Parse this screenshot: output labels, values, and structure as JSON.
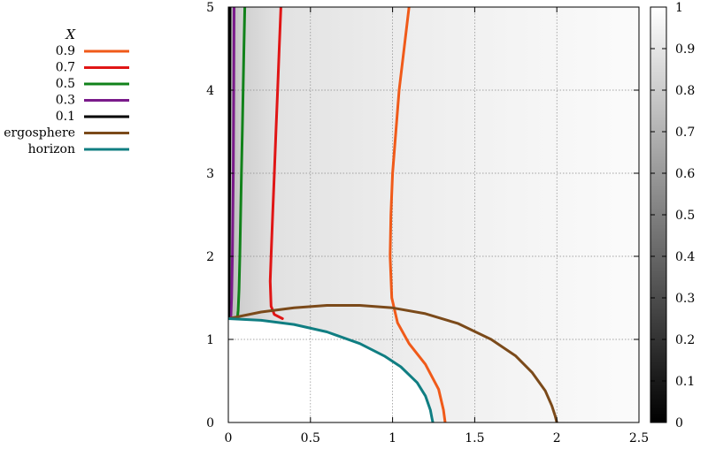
{
  "chart_data": {
    "type": "line",
    "title": "",
    "xlabel": "",
    "ylabel": "",
    "xlim": [
      0,
      2.5
    ],
    "ylim": [
      0,
      5
    ],
    "x_ticks": [
      0,
      0.5,
      1,
      1.5,
      2,
      2.5
    ],
    "y_ticks": [
      0,
      1,
      2,
      3,
      4,
      5
    ],
    "x_tick_labels": [
      "0",
      "0.5",
      "1",
      "1.5",
      "2",
      "2.5"
    ],
    "y_tick_labels": [
      "0",
      "1",
      "2",
      "3",
      "4",
      "5"
    ],
    "grid": true,
    "background": "grayscale heatmap",
    "colorbar": {
      "range": [
        0,
        1
      ],
      "ticks": [
        0,
        0.1,
        0.2,
        0.3,
        0.4,
        0.5,
        0.6,
        0.7,
        0.8,
        0.9,
        1
      ],
      "tick_labels": [
        "0",
        "0.1",
        "0.2",
        "0.3",
        "0.4",
        "0.5",
        "0.6",
        "0.7",
        "0.8",
        "0.9",
        "1"
      ]
    },
    "legend": {
      "title": "X",
      "placement": "left, outside plot"
    },
    "series": [
      {
        "name": "0.9",
        "color": "#f05a19",
        "points": [
          [
            1.1,
            5
          ],
          [
            1.07,
            4.5
          ],
          [
            1.04,
            4.0
          ],
          [
            1.02,
            3.5
          ],
          [
            1.0,
            3.0
          ],
          [
            0.99,
            2.5
          ],
          [
            0.985,
            2.0
          ],
          [
            0.995,
            1.5
          ],
          [
            1.03,
            1.2
          ],
          [
            1.1,
            0.95
          ],
          [
            1.2,
            0.7
          ],
          [
            1.28,
            0.4
          ],
          [
            1.31,
            0.15
          ],
          [
            1.32,
            0
          ]
        ]
      },
      {
        "name": "0.7",
        "color": "#e01515",
        "points": [
          [
            0.32,
            5
          ],
          [
            0.31,
            4.5
          ],
          [
            0.3,
            4.0
          ],
          [
            0.29,
            3.5
          ],
          [
            0.28,
            3.0
          ],
          [
            0.27,
            2.5
          ],
          [
            0.26,
            2.0
          ],
          [
            0.255,
            1.7
          ],
          [
            0.26,
            1.4
          ],
          [
            0.28,
            1.3
          ],
          [
            0.33,
            1.25
          ]
        ]
      },
      {
        "name": "0.5",
        "color": "#11821a",
        "points": [
          [
            0.1,
            5
          ],
          [
            0.095,
            4.5
          ],
          [
            0.09,
            4.0
          ],
          [
            0.085,
            3.5
          ],
          [
            0.08,
            3.0
          ],
          [
            0.075,
            2.5
          ],
          [
            0.07,
            2.0
          ],
          [
            0.065,
            1.6
          ],
          [
            0.06,
            1.35
          ],
          [
            0.055,
            1.25
          ]
        ]
      },
      {
        "name": "0.3",
        "color": "#7a1a8a",
        "points": [
          [
            0.035,
            5
          ],
          [
            0.033,
            4.0
          ],
          [
            0.03,
            3.0
          ],
          [
            0.025,
            2.0
          ],
          [
            0.02,
            1.5
          ],
          [
            0.015,
            1.25
          ]
        ]
      },
      {
        "name": "0.1",
        "color": "#000000",
        "points": [
          [
            0.01,
            5
          ],
          [
            0.009,
            4.0
          ],
          [
            0.008,
            3.0
          ],
          [
            0.006,
            2.0
          ],
          [
            0.004,
            1.5
          ],
          [
            0.002,
            1.25
          ]
        ]
      },
      {
        "name": "ergosphere",
        "color": "#7b4a1a",
        "points": [
          [
            0,
            1.25
          ],
          [
            0.2,
            1.33
          ],
          [
            0.4,
            1.38
          ],
          [
            0.6,
            1.41
          ],
          [
            0.8,
            1.41
          ],
          [
            1.0,
            1.38
          ],
          [
            1.2,
            1.31
          ],
          [
            1.4,
            1.19
          ],
          [
            1.6,
            1.0
          ],
          [
            1.75,
            0.8
          ],
          [
            1.85,
            0.6
          ],
          [
            1.93,
            0.38
          ],
          [
            1.97,
            0.2
          ],
          [
            1.99,
            0.08
          ],
          [
            2.0,
            0
          ]
        ]
      },
      {
        "name": "horizon",
        "color": "#107e82",
        "points": [
          [
            0,
            1.25
          ],
          [
            0.2,
            1.23
          ],
          [
            0.4,
            1.18
          ],
          [
            0.6,
            1.09
          ],
          [
            0.8,
            0.95
          ],
          [
            0.95,
            0.8
          ],
          [
            1.05,
            0.67
          ],
          [
            1.15,
            0.48
          ],
          [
            1.2,
            0.32
          ],
          [
            1.23,
            0.15
          ],
          [
            1.24,
            0.05
          ],
          [
            1.245,
            0
          ]
        ]
      }
    ]
  }
}
